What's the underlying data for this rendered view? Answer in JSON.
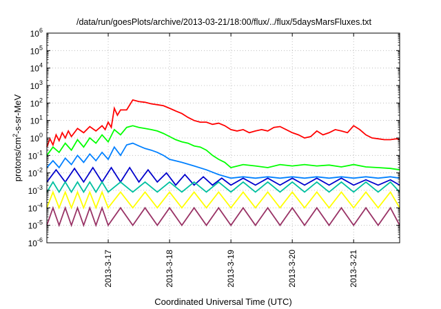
{
  "chart_data": {
    "type": "line",
    "title": "/data/run/goesPlots/archive/2013-03-21/18:00/flux/../flux/5daysMarsFluxes.txt",
    "xlabel": "Coordinated Universal Time (UTC)",
    "ylabel": "protons/cm²-s-sr-MeV",
    "ylabel_base": "protons/cm",
    "ylabel_sup": "2",
    "ylabel_rest": "-s-sr-MeV",
    "y_scale": "log",
    "ylim": [
      1e-06,
      1000000.0
    ],
    "y_ticks": [
      {
        "value": 1e-06,
        "exp": "-6"
      },
      {
        "value": 1e-05,
        "exp": "-5"
      },
      {
        "value": 0.0001,
        "exp": "-4"
      },
      {
        "value": 0.001,
        "exp": "-3"
      },
      {
        "value": 0.01,
        "exp": "-2"
      },
      {
        "value": 0.1,
        "exp": "-1"
      },
      {
        "value": 1,
        "exp": "0"
      },
      {
        "value": 10,
        "exp": "1"
      },
      {
        "value": 100,
        "exp": "2"
      },
      {
        "value": 1000,
        "exp": "3"
      },
      {
        "value": 10000,
        "exp": "4"
      },
      {
        "value": 100000,
        "exp": "5"
      },
      {
        "value": 1000000,
        "exp": "6"
      }
    ],
    "y_tick_base": "10",
    "x_unit": "days",
    "xlim": [
      0,
      5.75
    ],
    "x_ticks": [
      {
        "value": 1,
        "label": "2013-3-17"
      },
      {
        "value": 2,
        "label": "2013-3-18"
      },
      {
        "value": 3,
        "label": "2013-3-19"
      },
      {
        "value": 4,
        "label": "2013-3-20"
      },
      {
        "value": 5,
        "label": "2013-3-21"
      }
    ],
    "grid": true,
    "legend": "none",
    "series": [
      {
        "color": "#ff0000",
        "x": [
          0.0,
          0.05,
          0.1,
          0.15,
          0.2,
          0.25,
          0.3,
          0.35,
          0.4,
          0.5,
          0.6,
          0.7,
          0.8,
          0.9,
          0.95,
          1.0,
          1.05,
          1.1,
          1.15,
          1.2,
          1.3,
          1.4,
          1.5,
          1.6,
          1.7,
          1.8,
          1.9,
          2.0,
          2.1,
          2.2,
          2.3,
          2.4,
          2.5,
          2.6,
          2.7,
          2.8,
          2.9,
          3.0,
          3.1,
          3.2,
          3.3,
          3.4,
          3.5,
          3.6,
          3.7,
          3.8,
          3.9,
          4.0,
          4.1,
          4.2,
          4.3,
          4.4,
          4.5,
          4.6,
          4.7,
          4.8,
          4.9,
          5.0,
          5.1,
          5.2,
          5.3,
          5.4,
          5.5,
          5.6,
          5.7,
          5.75
        ],
        "y": [
          0.3,
          0.9,
          0.4,
          1.5,
          0.7,
          2.0,
          1.0,
          2.5,
          1.2,
          3.5,
          2.0,
          4.5,
          2.5,
          5.0,
          3.0,
          8.0,
          4.0,
          50.0,
          20.0,
          40.0,
          40.0,
          150.0,
          120.0,
          110.0,
          90.0,
          80.0,
          70.0,
          50.0,
          35.0,
          25.0,
          15.0,
          10.0,
          8.0,
          8.0,
          6.0,
          7.0,
          5.0,
          3.0,
          2.5,
          3.0,
          2.0,
          2.5,
          3.0,
          2.5,
          4.0,
          4.5,
          3.0,
          2.0,
          1.5,
          1.0,
          1.2,
          2.5,
          1.5,
          2.0,
          3.0,
          2.5,
          2.0,
          5.0,
          3.0,
          1.5,
          1.0,
          0.9,
          0.8,
          0.8,
          0.9,
          0.8
        ]
      },
      {
        "color": "#00ff00",
        "x": [
          0.0,
          0.1,
          0.2,
          0.3,
          0.4,
          0.5,
          0.6,
          0.7,
          0.8,
          0.9,
          1.0,
          1.1,
          1.2,
          1.3,
          1.4,
          1.5,
          1.6,
          1.7,
          1.8,
          1.9,
          2.0,
          2.1,
          2.2,
          2.3,
          2.4,
          2.5,
          2.6,
          2.7,
          2.8,
          2.9,
          3.0,
          3.2,
          3.4,
          3.6,
          3.8,
          4.0,
          4.2,
          4.4,
          4.6,
          4.8,
          5.0,
          5.2,
          5.4,
          5.6,
          5.75
        ],
        "y": [
          0.1,
          0.3,
          0.15,
          0.5,
          0.2,
          0.8,
          0.3,
          1.0,
          0.5,
          1.5,
          0.6,
          3.0,
          1.5,
          4.0,
          5.0,
          4.0,
          3.5,
          3.0,
          2.5,
          1.8,
          1.2,
          0.8,
          0.6,
          0.5,
          0.35,
          0.3,
          0.2,
          0.1,
          0.06,
          0.04,
          0.02,
          0.03,
          0.025,
          0.02,
          0.03,
          0.025,
          0.03,
          0.025,
          0.028,
          0.022,
          0.03,
          0.022,
          0.02,
          0.018,
          0.015
        ]
      },
      {
        "color": "#0080ff",
        "x": [
          0.0,
          0.1,
          0.2,
          0.3,
          0.4,
          0.5,
          0.6,
          0.7,
          0.8,
          0.9,
          1.0,
          1.1,
          1.2,
          1.3,
          1.4,
          1.5,
          1.6,
          1.7,
          1.8,
          1.9,
          2.0,
          2.2,
          2.4,
          2.6,
          2.8,
          3.0,
          3.2,
          3.4,
          3.6,
          3.8,
          4.0,
          4.2,
          4.4,
          4.6,
          4.8,
          5.0,
          5.2,
          5.4,
          5.6,
          5.75
        ],
        "y": [
          0.02,
          0.05,
          0.02,
          0.07,
          0.03,
          0.1,
          0.04,
          0.12,
          0.05,
          0.15,
          0.06,
          0.3,
          0.1,
          0.4,
          0.5,
          0.35,
          0.25,
          0.2,
          0.15,
          0.1,
          0.06,
          0.04,
          0.025,
          0.015,
          0.008,
          0.005,
          0.006,
          0.005,
          0.006,
          0.005,
          0.006,
          0.005,
          0.006,
          0.005,
          0.006,
          0.005,
          0.006,
          0.005,
          0.006,
          0.005
        ]
      },
      {
        "color": "#0000cc",
        "x": [
          0.0,
          0.15,
          0.3,
          0.45,
          0.6,
          0.75,
          0.9,
          1.05,
          1.2,
          1.35,
          1.5,
          1.65,
          1.8,
          1.95,
          2.1,
          2.25,
          2.4,
          2.55,
          2.7,
          2.85,
          3.0,
          3.2,
          3.4,
          3.6,
          3.8,
          4.0,
          4.2,
          4.4,
          4.6,
          4.8,
          5.0,
          5.2,
          5.4,
          5.6,
          5.75
        ],
        "y": [
          0.003,
          0.015,
          0.003,
          0.018,
          0.003,
          0.02,
          0.003,
          0.02,
          0.003,
          0.02,
          0.003,
          0.015,
          0.003,
          0.01,
          0.002,
          0.008,
          0.002,
          0.006,
          0.002,
          0.005,
          0.002,
          0.005,
          0.002,
          0.005,
          0.002,
          0.005,
          0.002,
          0.005,
          0.002,
          0.005,
          0.002,
          0.004,
          0.002,
          0.004,
          0.002
        ]
      },
      {
        "color": "#00c0a0",
        "x": [
          0.0,
          0.1,
          0.2,
          0.3,
          0.4,
          0.5,
          0.6,
          0.7,
          0.8,
          0.9,
          1.0,
          1.2,
          1.4,
          1.6,
          1.8,
          2.0,
          2.2,
          2.4,
          2.6,
          2.8,
          3.0,
          3.2,
          3.4,
          3.6,
          3.8,
          4.0,
          4.2,
          4.4,
          4.6,
          4.8,
          5.0,
          5.2,
          5.4,
          5.6,
          5.75
        ],
        "y": [
          0.0008,
          0.003,
          0.0008,
          0.003,
          0.0008,
          0.003,
          0.0008,
          0.003,
          0.0008,
          0.003,
          0.0008,
          0.003,
          0.0008,
          0.003,
          0.0008,
          0.003,
          0.0008,
          0.003,
          0.0008,
          0.003,
          0.0008,
          0.003,
          0.0008,
          0.003,
          0.0008,
          0.003,
          0.0008,
          0.003,
          0.0008,
          0.003,
          0.0008,
          0.003,
          0.0008,
          0.003,
          0.0008
        ]
      },
      {
        "color": "#ffff00",
        "x": [
          0.0,
          0.1,
          0.2,
          0.3,
          0.4,
          0.5,
          0.6,
          0.7,
          0.8,
          0.9,
          1.0,
          1.2,
          1.4,
          1.6,
          1.8,
          2.0,
          2.2,
          2.4,
          2.6,
          2.8,
          3.0,
          3.2,
          3.4,
          3.6,
          3.8,
          4.0,
          4.2,
          4.4,
          4.6,
          4.8,
          5.0,
          5.2,
          5.4,
          5.6,
          5.75
        ],
        "y": [
          0.0001,
          0.0008,
          0.0001,
          0.0008,
          0.0001,
          0.0008,
          0.0001,
          0.0008,
          0.0001,
          0.0008,
          0.0001,
          0.0008,
          0.0001,
          0.0008,
          0.0001,
          0.0008,
          0.0001,
          0.0008,
          0.0001,
          0.0008,
          0.0001,
          0.0008,
          0.0001,
          0.0008,
          0.0001,
          0.0008,
          0.0001,
          0.0008,
          0.0001,
          0.0008,
          0.0001,
          0.0008,
          0.0001,
          0.0008,
          0.0001
        ]
      },
      {
        "color": "#993366",
        "x": [
          0.0,
          0.1,
          0.2,
          0.3,
          0.4,
          0.5,
          0.6,
          0.7,
          0.8,
          0.9,
          1.0,
          1.2,
          1.4,
          1.6,
          1.8,
          2.0,
          2.2,
          2.4,
          2.6,
          2.8,
          3.0,
          3.2,
          3.4,
          3.6,
          3.8,
          4.0,
          4.2,
          4.4,
          4.6,
          4.8,
          5.0,
          5.2,
          5.4,
          5.6,
          5.75
        ],
        "y": [
          1e-05,
          0.0001,
          1e-05,
          0.0001,
          1e-05,
          0.0001,
          1e-05,
          0.0001,
          1e-05,
          0.0001,
          1e-05,
          0.0001,
          1e-05,
          0.0001,
          1e-05,
          0.0001,
          1e-05,
          0.0001,
          1e-05,
          0.0001,
          1e-05,
          0.0001,
          1e-05,
          0.0001,
          1e-05,
          0.0001,
          1e-05,
          0.0001,
          1e-05,
          0.0001,
          1e-05,
          0.0001,
          1e-05,
          0.0001,
          1e-05
        ]
      }
    ]
  }
}
